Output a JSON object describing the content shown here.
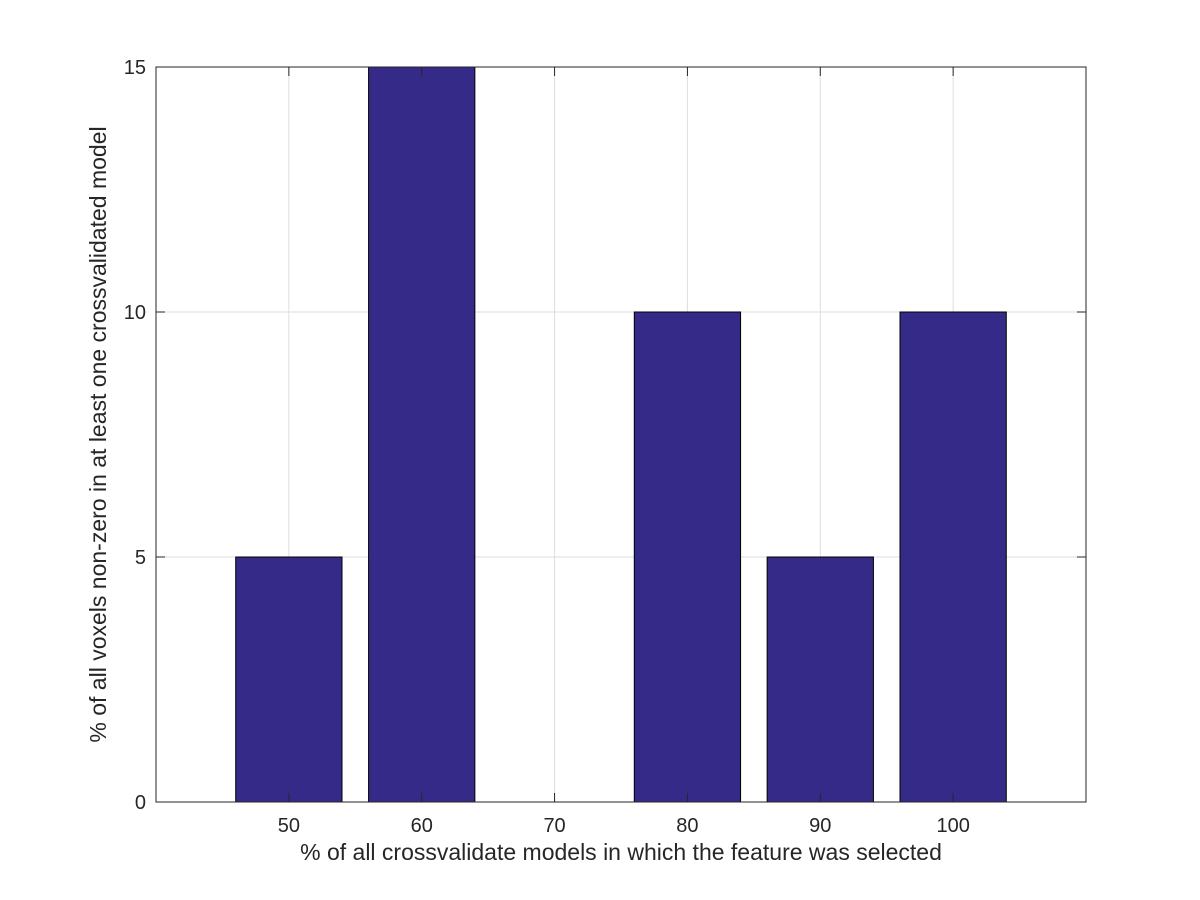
{
  "chart_data": {
    "type": "bar",
    "categories": [
      "50",
      "60",
      "70",
      "80",
      "90",
      "100"
    ],
    "values": [
      5,
      15,
      0,
      10,
      5,
      10
    ],
    "xlabel": "% of all crossvalidate models in which the feature was selected",
    "ylabel": "% of all voxels non-zero in at least one crossvalidated model",
    "ylim": [
      0,
      15
    ],
    "yticks": [
      0,
      5,
      10,
      15
    ],
    "grid": true,
    "bar_color": "#352a87"
  }
}
